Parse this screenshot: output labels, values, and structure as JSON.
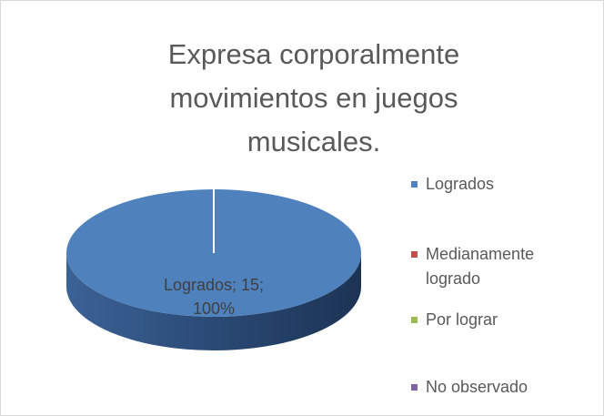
{
  "chart_data": {
    "type": "pie3d",
    "title": "Expresa corporalmente movimientos en juegos musicales.",
    "categories": [
      "Logrados",
      "Medianamente logrado",
      "Por lograr",
      "No observado"
    ],
    "values": [
      15,
      0,
      0,
      0
    ],
    "value_labels": [
      "Logrados; 15; 100%",
      null,
      null,
      null
    ],
    "colors": [
      "#4f81bd",
      "#c0504d",
      "#9bbb59",
      "#8064a2"
    ],
    "legend": "right"
  }
}
